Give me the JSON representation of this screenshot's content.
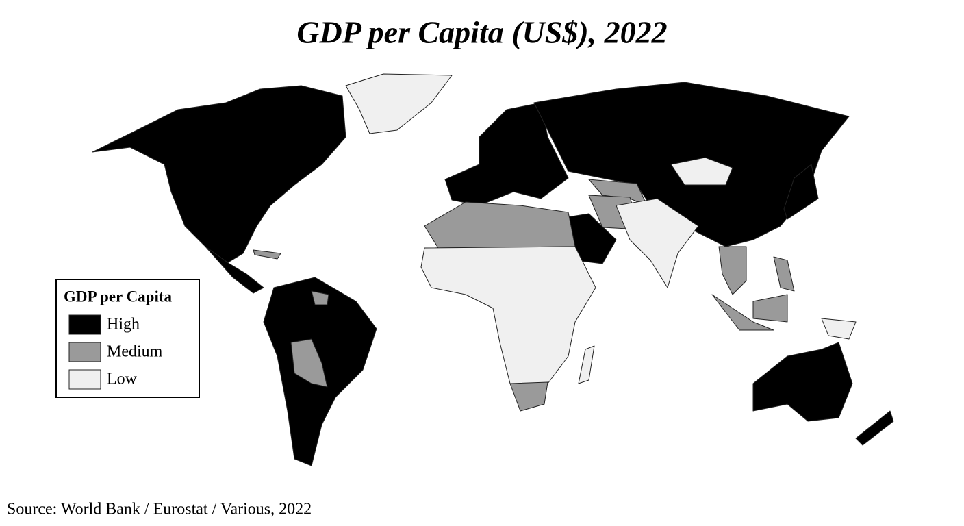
{
  "title": "GDP per Capita (US$), 2022",
  "legend": {
    "title": "GDP per Capita",
    "items": [
      {
        "label": "High",
        "color": "#000000"
      },
      {
        "label": "Medium",
        "color": "#9a9a9a"
      },
      {
        "label": "Low",
        "color": "#f0f0f0"
      }
    ]
  },
  "source": "Source: World Bank / Eurostat / Various, 2022"
}
